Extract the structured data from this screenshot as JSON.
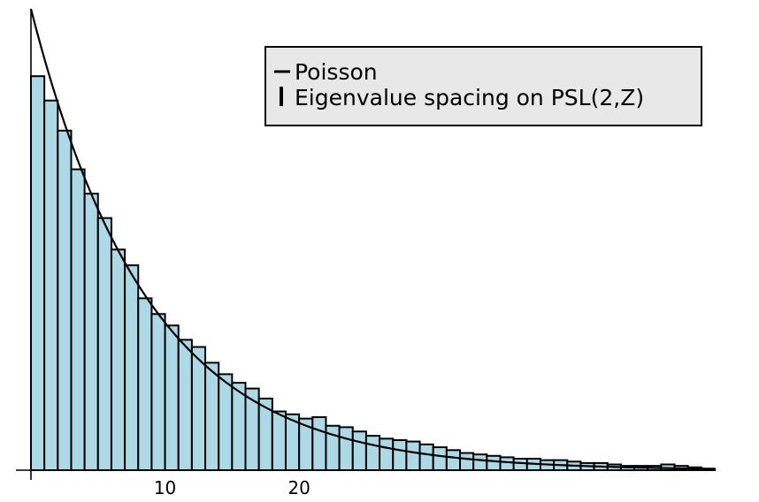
{
  "chart_data": {
    "type": "bar",
    "xlim": [
      0,
      51
    ],
    "ylim": [
      0,
      32.2
    ],
    "bin_width": 1,
    "bins_start": 0,
    "values": [
      27.5,
      25.8,
      23.7,
      21.0,
      19.3,
      17.6,
      15.4,
      14.3,
      12.0,
      10.9,
      10.1,
      9.1,
      8.6,
      7.5,
      6.7,
      6.1,
      5.7,
      5.0,
      4.1,
      3.9,
      3.6,
      3.7,
      3.1,
      3.0,
      2.7,
      2.4,
      2.2,
      2.1,
      2.0,
      1.8,
      1.6,
      1.4,
      1.2,
      1.1,
      1.0,
      0.9,
      0.8,
      0.8,
      0.7,
      0.7,
      0.6,
      0.5,
      0.5,
      0.4,
      0.3,
      0.3,
      0.3,
      0.4,
      0.3,
      0.2,
      0.1
    ],
    "poisson_curve": {
      "amplitude": 32.2,
      "decay_rate": 0.114
    },
    "x_ticks": [
      10,
      20
    ],
    "legend": {
      "entries": [
        "Poisson",
        "Eigenvalue spacing on PSL(2,Z)"
      ],
      "placement": "top-right"
    },
    "colors": {
      "bar_fill": "#add8e6",
      "bar_edge": "#000000",
      "curve": "#000000",
      "legend_bg": "#e8e8e8"
    },
    "grid": false
  }
}
